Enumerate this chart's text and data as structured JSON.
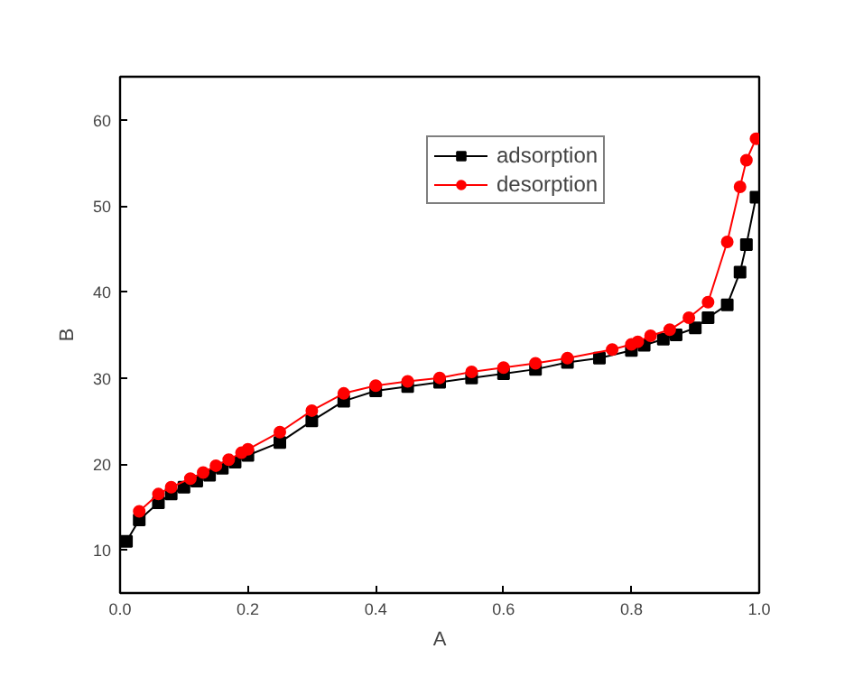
{
  "chart_data": {
    "type": "line",
    "xlabel": "A",
    "ylabel": "B",
    "xlim": [
      0,
      1
    ],
    "ylim": [
      5,
      65
    ],
    "xticks": [
      {
        "value": 0,
        "label": "0.0"
      },
      0.2,
      0.4,
      0.6,
      0.8,
      {
        "value": 1,
        "label": "1.0"
      }
    ],
    "yticks": [
      10,
      20,
      30,
      40,
      50,
      60
    ],
    "grid": false,
    "legend": "top right",
    "line_style": "solid",
    "series": [
      {
        "name": "adsorption",
        "color": "#000000",
        "marker": "square",
        "x": [
          0.01,
          0.03,
          0.06,
          0.08,
          0.1,
          0.12,
          0.14,
          0.16,
          0.18,
          0.2,
          0.25,
          0.3,
          0.35,
          0.4,
          0.45,
          0.5,
          0.55,
          0.6,
          0.65,
          0.7,
          0.75,
          0.8,
          0.82,
          0.85,
          0.87,
          0.9,
          0.92,
          0.95,
          0.97,
          0.98,
          0.995
        ],
        "values": [
          11,
          13.5,
          15.5,
          16.5,
          17.3,
          18,
          18.7,
          19.5,
          20.2,
          21,
          22.5,
          25,
          27.3,
          28.5,
          29,
          29.5,
          30,
          30.5,
          31,
          31.8,
          32.3,
          33.2,
          33.8,
          34.5,
          35,
          35.8,
          37,
          38.5,
          42.3,
          45.5,
          51
        ]
      },
      {
        "name": "desorption",
        "color": "#ff0000",
        "marker": "circle",
        "x": [
          0.03,
          0.06,
          0.08,
          0.11,
          0.13,
          0.15,
          0.17,
          0.19,
          0.2,
          0.25,
          0.3,
          0.35,
          0.4,
          0.45,
          0.5,
          0.55,
          0.6,
          0.65,
          0.7,
          0.77,
          0.8,
          0.81,
          0.83,
          0.86,
          0.89,
          0.92,
          0.95,
          0.97,
          0.98,
          0.995
        ],
        "values": [
          14.5,
          16.5,
          17.3,
          18.3,
          19,
          19.8,
          20.5,
          21.3,
          21.7,
          23.7,
          26.2,
          28.2,
          29.1,
          29.6,
          30,
          30.7,
          31.2,
          31.7,
          32.3,
          33.3,
          33.9,
          34.2,
          34.9,
          35.6,
          37,
          38.8,
          45.8,
          52.2,
          55.3,
          57.8
        ]
      }
    ]
  }
}
